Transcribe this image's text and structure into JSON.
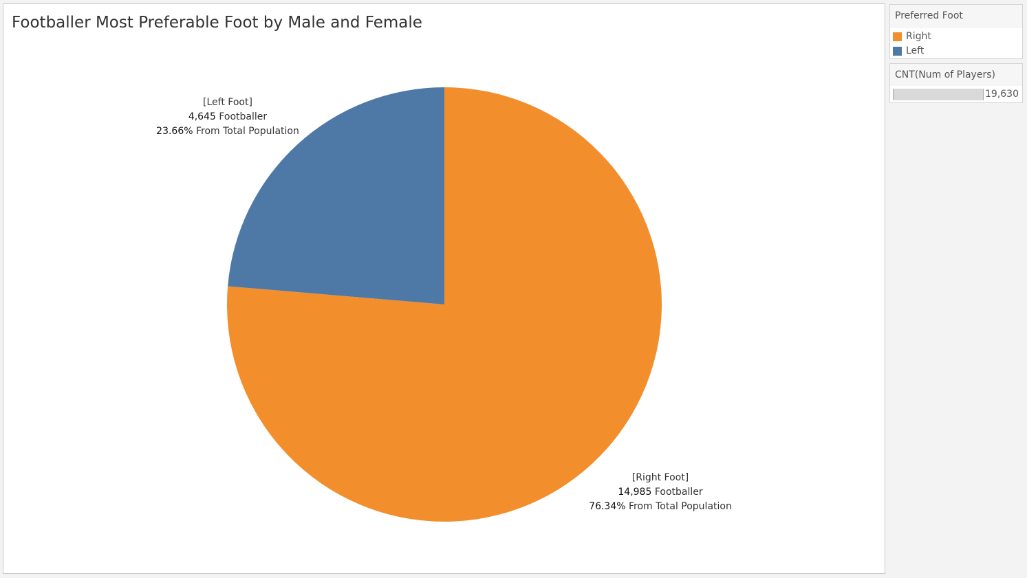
{
  "title": "Footballer Most Preferable Foot by Male and Female",
  "legend": {
    "title": "Preferred Foot",
    "items": [
      {
        "label": "Right",
        "color": "#f28e2b"
      },
      {
        "label": "Left",
        "color": "#4e79a7"
      }
    ]
  },
  "size_legend": {
    "title": "CNT(Num of Players)",
    "max_value": "19,630"
  },
  "labels": {
    "left": {
      "name": "[Left Foot]",
      "count": "4,645",
      "count_suffix": " Footballer",
      "pct": "23.66%",
      "pct_suffix": " From Total Population"
    },
    "right": {
      "name": "[Right Foot]",
      "count": "14,985",
      "count_suffix": " Footballer",
      "pct": "76.34%",
      "pct_suffix": " From Total Population"
    }
  },
  "chart_data": {
    "type": "pie",
    "title": "Footballer Most Preferable Foot by Male and Female",
    "categories": [
      "Right",
      "Left"
    ],
    "values": [
      14985,
      4645
    ],
    "percentages": [
      76.34,
      23.66
    ],
    "colors": [
      "#f28e2b",
      "#4e79a7"
    ],
    "legend_position": "right"
  }
}
